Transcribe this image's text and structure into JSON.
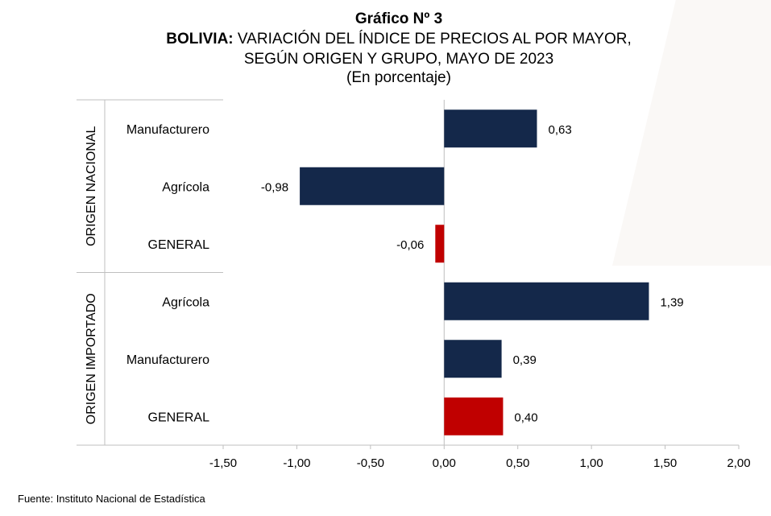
{
  "title": {
    "line1": "Gráfico Nº 3",
    "line2_bold": "BOLIVIA:",
    "line2_rest": " VARIACIÓN DEL ÍNDICE DE PRECIOS AL POR MAYOR,",
    "line3": "SEGÚN ORIGEN Y GRUPO, MAYO DE 2023",
    "line4": "(En porcentaje)"
  },
  "source": "Fuente: Instituto Nacional de Estadística",
  "colors": {
    "bar": "#14284a",
    "general": "#c00000",
    "axis": "#bfbfbf"
  },
  "chart_data": {
    "type": "bar",
    "orientation": "horizontal",
    "groups": [
      {
        "name": "ORIGEN NACIONAL",
        "items": [
          {
            "label": "Manufacturero",
            "value": 0.63,
            "value_label": "0,63",
            "highlight": false
          },
          {
            "label": "Agrícola",
            "value": -0.98,
            "value_label": "-0,98",
            "highlight": false
          },
          {
            "label": "GENERAL",
            "value": -0.06,
            "value_label": "-0,06",
            "highlight": true
          }
        ]
      },
      {
        "name": "ORIGEN IMPORTADO",
        "items": [
          {
            "label": "Agrícola",
            "value": 1.39,
            "value_label": "1,39",
            "highlight": false
          },
          {
            "label": "Manufacturero",
            "value": 0.39,
            "value_label": "0,39",
            "highlight": false
          },
          {
            "label": "GENERAL",
            "value": 0.4,
            "value_label": "0,40",
            "highlight": true
          }
        ]
      }
    ],
    "xlim": [
      -1.5,
      2.0
    ],
    "xticks": [
      -1.5,
      -1.0,
      -0.5,
      0.0,
      0.5,
      1.0,
      1.5,
      2.0
    ],
    "xtick_labels": [
      "-1,50",
      "-1,00",
      "-0,50",
      "0,00",
      "0,50",
      "1,00",
      "1,50",
      "2,00"
    ],
    "grid": false,
    "legend": "none"
  }
}
